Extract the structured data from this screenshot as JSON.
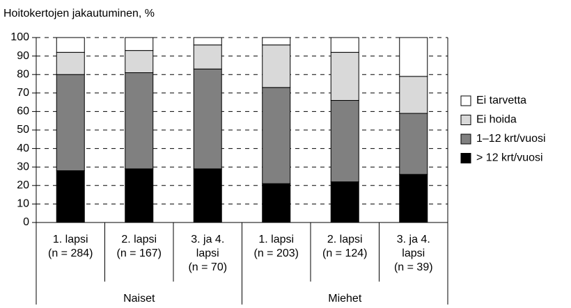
{
  "chart_data": {
    "type": "stacked_bar",
    "title": "Hoitokertojen jakautuminen, %",
    "categories": [
      [
        "1. lapsi",
        "(n = 284)"
      ],
      [
        "2. lapsi",
        "(n = 167)"
      ],
      [
        "3. ja 4.",
        "lapsi",
        "(n = 70)"
      ],
      [
        "1. lapsi",
        "(n = 203)"
      ],
      [
        "2. lapsi",
        "(n = 124)"
      ],
      [
        "3. ja 4.",
        "lapsi",
        "(n = 39)"
      ]
    ],
    "groups": [
      "Naiset",
      "Miehet"
    ],
    "series": [
      {
        "name": "> 12 krt/vuosi",
        "color": "#000000",
        "values": [
          28,
          29,
          29,
          21,
          22,
          26
        ]
      },
      {
        "name": "1–12 krt/vuosi",
        "color": "#808080",
        "values": [
          52,
          52,
          54,
          52,
          44,
          33
        ]
      },
      {
        "name": "Ei hoida",
        "color": "#d9d9d9",
        "values": [
          12,
          12,
          13,
          23,
          26,
          20
        ]
      },
      {
        "name": "Ei tarvetta",
        "color": "#ffffff",
        "values": [
          8,
          7,
          4,
          4,
          8,
          21
        ]
      }
    ],
    "ylim": [
      0,
      100
    ],
    "yticks": [
      0,
      10,
      20,
      30,
      40,
      50,
      60,
      70,
      80,
      90,
      100
    ],
    "grid": true,
    "legend": "right"
  }
}
